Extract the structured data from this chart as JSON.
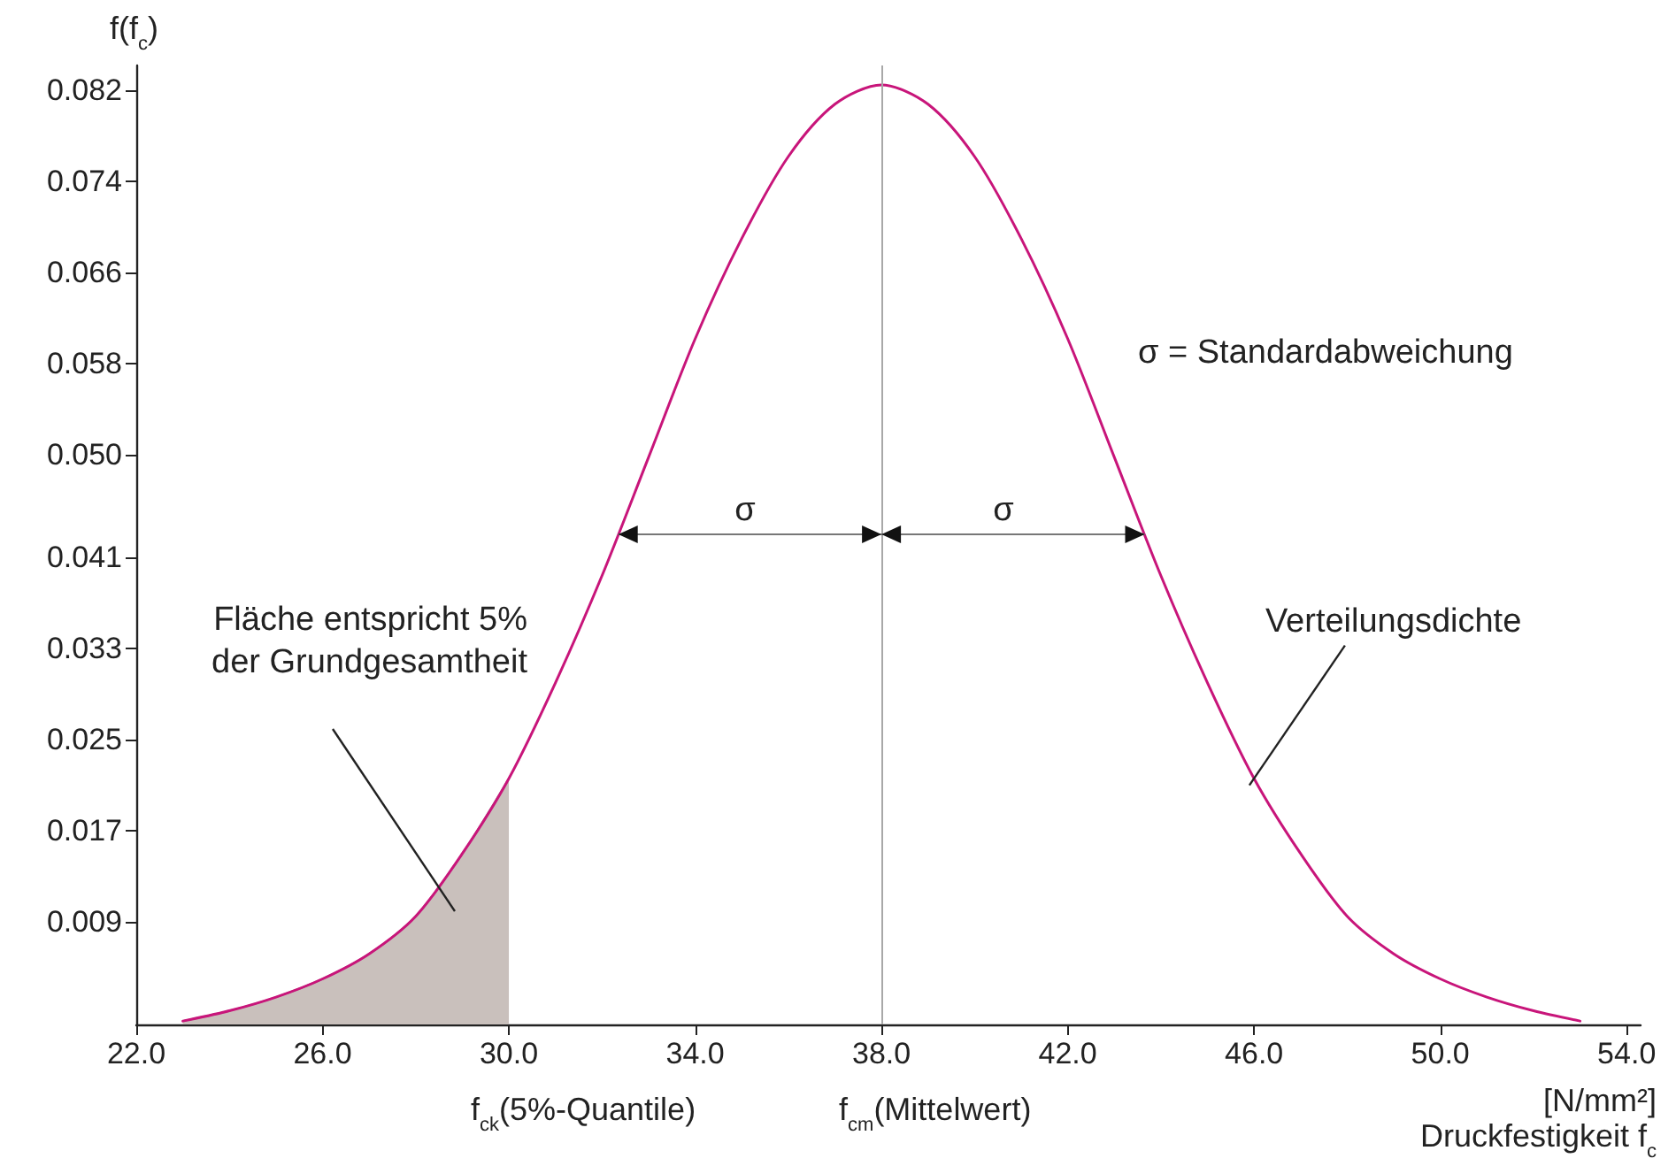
{
  "chart_data": {
    "type": "line",
    "ylabel": "f(f$_{c}$)",
    "xlabel": "[N/mm²]\nDruckfestigkeit f$_{c}$",
    "xlim": [
      22,
      54.3
    ],
    "xticks": [
      {
        "value": 22,
        "label": "22.0"
      },
      {
        "value": 26,
        "label": "26.0"
      },
      {
        "value": 30,
        "label": "30.0"
      },
      {
        "value": 34,
        "label": "34.0"
      },
      {
        "value": 38,
        "label": "38.0"
      },
      {
        "value": 42,
        "label": "42.0"
      },
      {
        "value": 46,
        "label": "46.0"
      },
      {
        "value": 50,
        "label": "50.0"
      },
      {
        "value": 54,
        "label": "54.0"
      }
    ],
    "ylim": [
      0,
      0.0842
    ],
    "yticks": [
      {
        "value": 0.009,
        "label": "0.009"
      },
      {
        "value": 0.017,
        "label": "0.017"
      },
      {
        "value": 0.025,
        "label": "0.025"
      },
      {
        "value": 0.033,
        "label": "0.033"
      },
      {
        "value": 0.041,
        "label": "0.041"
      },
      {
        "value": 0.05,
        "label": "0.050"
      },
      {
        "value": 0.058,
        "label": "0.058"
      },
      {
        "value": 0.066,
        "label": "0.066"
      },
      {
        "value": 0.074,
        "label": "0.074"
      },
      {
        "value": 0.082,
        "label": "0.082"
      }
    ],
    "marker": "none",
    "line_style": "solid",
    "series": [
      {
        "type": "area",
        "color": "#c9c0bc",
        "x": [
          23,
          24,
          25,
          26,
          27,
          28,
          29,
          30
        ],
        "values": [
          0.0003,
          0.0012,
          0.0024,
          0.004,
          0.0062,
          0.0095,
          0.015,
          0.0216
        ]
      },
      {
        "color": "#c8157a",
        "x": [
          23,
          24,
          25,
          26,
          27,
          28,
          29,
          30,
          31,
          32,
          33,
          34,
          35,
          36,
          37,
          38,
          39,
          40,
          41,
          42,
          43,
          44,
          45,
          46,
          47,
          48,
          49,
          50,
          51,
          52,
          53
        ],
        "values": [
          0.0003,
          0.0012,
          0.0024,
          0.004,
          0.0062,
          0.0095,
          0.015,
          0.0216,
          0.03,
          0.0394,
          0.0498,
          0.0602,
          0.069,
          0.0762,
          0.0808,
          0.0825,
          0.0808,
          0.0762,
          0.069,
          0.0602,
          0.0498,
          0.0394,
          0.03,
          0.0216,
          0.015,
          0.0095,
          0.0062,
          0.004,
          0.0024,
          0.0012,
          0.0003
        ]
      }
    ],
    "ref_lines": [
      {
        "axis": "x",
        "value": 38,
        "color": "#a8a8a8"
      }
    ],
    "annotations": [
      "σ",
      "σ",
      "σ = Standardabweichung",
      "Fläche entspricht 5%\nder Grundgesamtheit",
      {
        "text": "Verteilungsdichte",
        "x": 45.9,
        "y": 0.021
      },
      "f$_{ck}$(5%-Quantile)",
      "f$_{cm}$(Mittelwert)"
    ]
  }
}
